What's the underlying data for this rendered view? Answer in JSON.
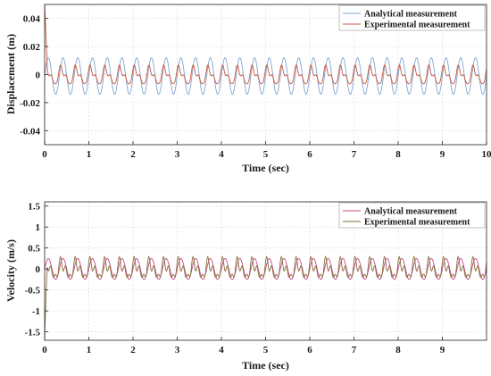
{
  "chart_data": [
    {
      "type": "line",
      "xlabel": "Time (sec)",
      "ylabel": "Displacement (m)",
      "xlim": [
        0,
        10
      ],
      "ylim": [
        -0.05,
        0.05
      ],
      "xticks": [
        0,
        1,
        2,
        3,
        4,
        5,
        6,
        7,
        8,
        9,
        10
      ],
      "xtick_labels": [
        "0",
        "1",
        "2",
        "3",
        "4",
        "5",
        "6",
        "7",
        "8",
        "9",
        "10"
      ],
      "yticks": [
        0.04,
        0.02,
        0,
        -0.02,
        -0.04
      ],
      "ytick_labels": [
        "0.04",
        "0.02",
        "0",
        "-0.02",
        "-0.04"
      ],
      "grid": true,
      "legend_position": "top-right",
      "colors": {
        "analytical": "#7fa6d4",
        "experimental": "#c8553d"
      },
      "series": [
        {
          "name": "Analytical measurement",
          "description_free": true,
          "frequency_hz": 3,
          "amplitude": 0.013,
          "offset": -0.001,
          "x_range": [
            0,
            10
          ]
        },
        {
          "name": "Experimental measurement",
          "frequency_hz": 3,
          "amplitude": 0.007,
          "offset": -0.001,
          "initial_spike": 0.05,
          "x_range": [
            0,
            10
          ]
        }
      ]
    },
    {
      "type": "line",
      "xlabel": "Time (sec)",
      "ylabel": "Velocity (m/s)",
      "xlim": [
        0,
        10
      ],
      "ylim": [
        -1.7,
        1.6
      ],
      "xticks": [
        0,
        1,
        2,
        3,
        4,
        5,
        6,
        7,
        8,
        9
      ],
      "xtick_labels": [
        "0",
        "1",
        "2",
        "3",
        "4",
        "5",
        "6",
        "7",
        "8",
        "9"
      ],
      "yticks": [
        1.5,
        1,
        0.5,
        0,
        -0.5,
        -1,
        -1.5
      ],
      "ytick_labels": [
        "1.5",
        "1",
        "0.5",
        "0",
        "-0.5",
        "-1",
        "-1.5"
      ],
      "grid": true,
      "legend_position": "top-right",
      "colors": {
        "analytical": "#c34b8d",
        "experimental": "#8a6d3b"
      },
      "series": [
        {
          "name": "Analytical measurement",
          "frequency_hz": 3,
          "amplitude": 0.25,
          "offset": 0,
          "x_range": [
            0,
            10
          ]
        },
        {
          "name": "Experimental measurement",
          "frequency_hz": 3,
          "amplitude": 0.22,
          "offset": -0.02,
          "initial_spike": -1.65,
          "x_range": [
            0,
            10
          ]
        }
      ]
    }
  ]
}
